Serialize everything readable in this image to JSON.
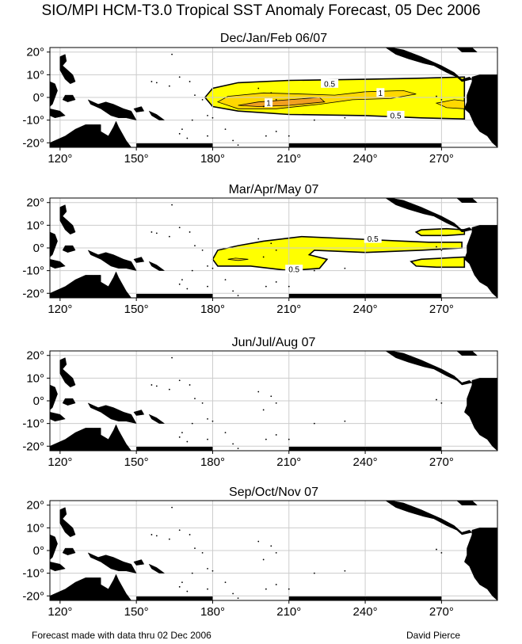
{
  "title": "SIO/MPI HCM-T3.0 Tropical SST Anomaly Forecast, 05 Dec 2006",
  "footer_left": "Forecast made with data thru 02 Dec 2006",
  "footer_right": "David Pierce",
  "colors": {
    "land": "#000000",
    "anomaly_low": "#ffff00",
    "anomaly_mid": "#ffd800",
    "anomaly_high": "#f0a020",
    "grid": "#cccccc",
    "contour": "#000000"
  },
  "map_extent": {
    "lon": [
      116,
      292
    ],
    "lat": [
      -22,
      22
    ]
  },
  "x_ticks": [
    120,
    150,
    180,
    210,
    240,
    270
  ],
  "x_tick_labels": [
    "120°",
    "150°",
    "180°",
    "210°",
    "240°",
    "270°"
  ],
  "y_ticks": [
    20,
    10,
    0,
    -10,
    -20
  ],
  "y_tick_labels": [
    "20°",
    "10°",
    "0°",
    "-10°",
    "-20°"
  ],
  "panels": [
    {
      "title": "Dec/Jan/Feb 06/07",
      "anomalies": [
        {
          "level": 0.5,
          "label": "0.5",
          "label_lon": 226,
          "label_lat": 6,
          "label2": "0.5",
          "label2_lon": 252,
          "label2_lat": -8,
          "ring": [
            [
              177,
              0
            ],
            [
              180,
              4
            ],
            [
              190,
              6.5
            ],
            [
              210,
              7.5
            ],
            [
              240,
              8
            ],
            [
              262,
              8.5
            ],
            [
              279,
              9
            ],
            [
              279,
              -9.5
            ],
            [
              262,
              -9
            ],
            [
              240,
              -8
            ],
            [
              210,
              -7.5
            ],
            [
              190,
              -6
            ],
            [
              180,
              -4
            ]
          ]
        },
        {
          "level": 1,
          "label": "1",
          "label_lon": 202,
          "label_lat": -2.5,
          "label2": "1",
          "label2_lon": 246,
          "label2_lat": 2,
          "ring": [
            [
              182,
              -2
            ],
            [
              186,
              0.5
            ],
            [
              200,
              2
            ],
            [
              215,
              1.5
            ],
            [
              228,
              1
            ],
            [
              240,
              2.5
            ],
            [
              255,
              3
            ],
            [
              260,
              1.5
            ],
            [
              250,
              -0.5
            ],
            [
              235,
              -1
            ],
            [
              222,
              -3
            ],
            [
              205,
              -5
            ],
            [
              190,
              -5
            ]
          ]
        },
        {
          "level": 1.5,
          "label": "",
          "ring": [
            [
              190,
              -3.5
            ],
            [
              198,
              -2
            ],
            [
              210,
              -1
            ],
            [
              222,
              0
            ],
            [
              224,
              -2
            ],
            [
              210,
              -3.5
            ],
            [
              198,
              -4
            ]
          ]
        },
        {
          "level": 1,
          "label": "",
          "ring": [
            [
              268,
              -2.5
            ],
            [
              275,
              -1
            ],
            [
              279,
              -1.5
            ],
            [
              279,
              -5
            ],
            [
              272,
              -4.5
            ]
          ]
        }
      ]
    },
    {
      "title": "Mar/Apr/May 07",
      "anomalies": [
        {
          "level": 0.5,
          "label": "0.5",
          "label_lon": 243,
          "label_lat": 4,
          "label2": "0.5",
          "label2_lon": 212,
          "label2_lat": -9.5,
          "ring": [
            [
              180,
              -5
            ],
            [
              182,
              -1
            ],
            [
              190,
              1
            ],
            [
              200,
              3
            ],
            [
              215,
              5
            ],
            [
              235,
              4
            ],
            [
              255,
              3
            ],
            [
              265,
              2.5
            ],
            [
              278,
              2.5
            ],
            [
              278,
              0
            ],
            [
              262,
              -1
            ],
            [
              240,
              -2
            ],
            [
              220,
              -1
            ],
            [
              218,
              -3
            ],
            [
              225,
              -5
            ],
            [
              222,
              -9
            ],
            [
              210,
              -10
            ],
            [
              195,
              -8
            ],
            [
              182,
              -8
            ]
          ]
        },
        {
          "level": 0.5,
          "label": "",
          "ring": [
            [
              260,
              7
            ],
            [
              262,
              8
            ],
            [
              272,
              8.5
            ],
            [
              279,
              8
            ],
            [
              279,
              6
            ],
            [
              272,
              5.5
            ],
            [
              262,
              5.5
            ]
          ]
        },
        {
          "level": 0.5,
          "label": "",
          "ring": [
            [
              258,
              -6
            ],
            [
              262,
              -5
            ],
            [
              279,
              -4
            ],
            [
              279,
              -8.5
            ],
            [
              268,
              -8.5
            ],
            [
              260,
              -8
            ]
          ]
        },
        {
          "level": 1,
          "label": "",
          "ring": [
            [
              186,
              -5
            ],
            [
              189,
              -4.5
            ],
            [
              194,
              -5
            ],
            [
              190,
              -5.5
            ]
          ]
        }
      ]
    },
    {
      "title": "Jun/Jul/Aug 07",
      "anomalies": []
    },
    {
      "title": "Sep/Oct/Nov 07",
      "anomalies": []
    }
  ]
}
